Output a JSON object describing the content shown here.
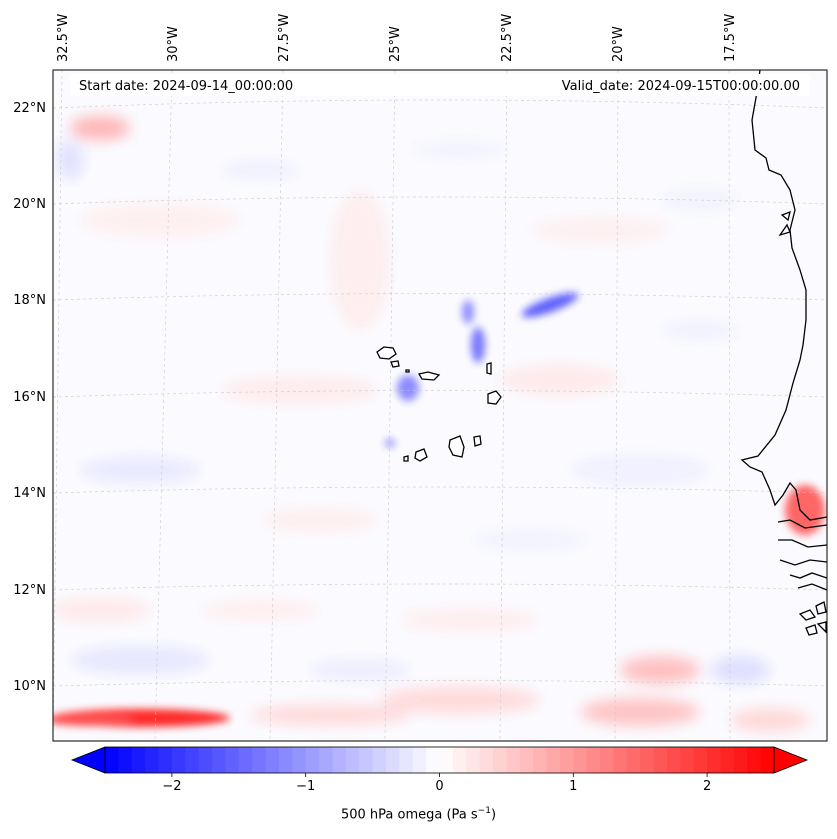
{
  "header": {
    "start_date": "Start date: 2024-09-14_00:00:00",
    "valid_date": "Valid_date: 2024-09-15T00:00:00.00"
  },
  "map": {
    "projection": "Lambert conformal",
    "extent_lon": [
      -33.0,
      -16.0
    ],
    "extent_lat": [
      9.0,
      22.7
    ],
    "lon_labels": [
      "32.5°W",
      "30°W",
      "27.5°W",
      "25°W",
      "22.5°W",
      "20°W",
      "17.5°W"
    ],
    "lat_labels": [
      "22°N",
      "20°N",
      "18°N",
      "16°N",
      "14°N",
      "12°N",
      "10°N"
    ],
    "gridlines": "dashed",
    "features": [
      "cabo-verde-islands",
      "african-coastline"
    ]
  },
  "colorbar": {
    "label_text": "500 hPa omega (Pa s",
    "label_unit_exp": "−1",
    "label_close": ")",
    "range": [
      -2.5,
      2.5
    ],
    "ticks": [
      "−2",
      "−1",
      "0",
      "1",
      "2"
    ],
    "extend": "both",
    "colormap": "bwr",
    "color_low": "#0000ff",
    "color_mid": "#ffffff",
    "color_high": "#ff0000"
  },
  "field_features": [
    {
      "name": "upward-motion-band-northeast-of-islands",
      "sign": "negative",
      "approx_lon": -21.5,
      "approx_lat": 17.4
    },
    {
      "name": "subsidence-band-south-itcz",
      "sign": "positive",
      "approx_lon": -30.5,
      "approx_lat": 9.2
    },
    {
      "name": "subsidence-west-africa-coast",
      "sign": "positive",
      "approx_lon": -16.5,
      "approx_lat": 13.3
    }
  ]
}
